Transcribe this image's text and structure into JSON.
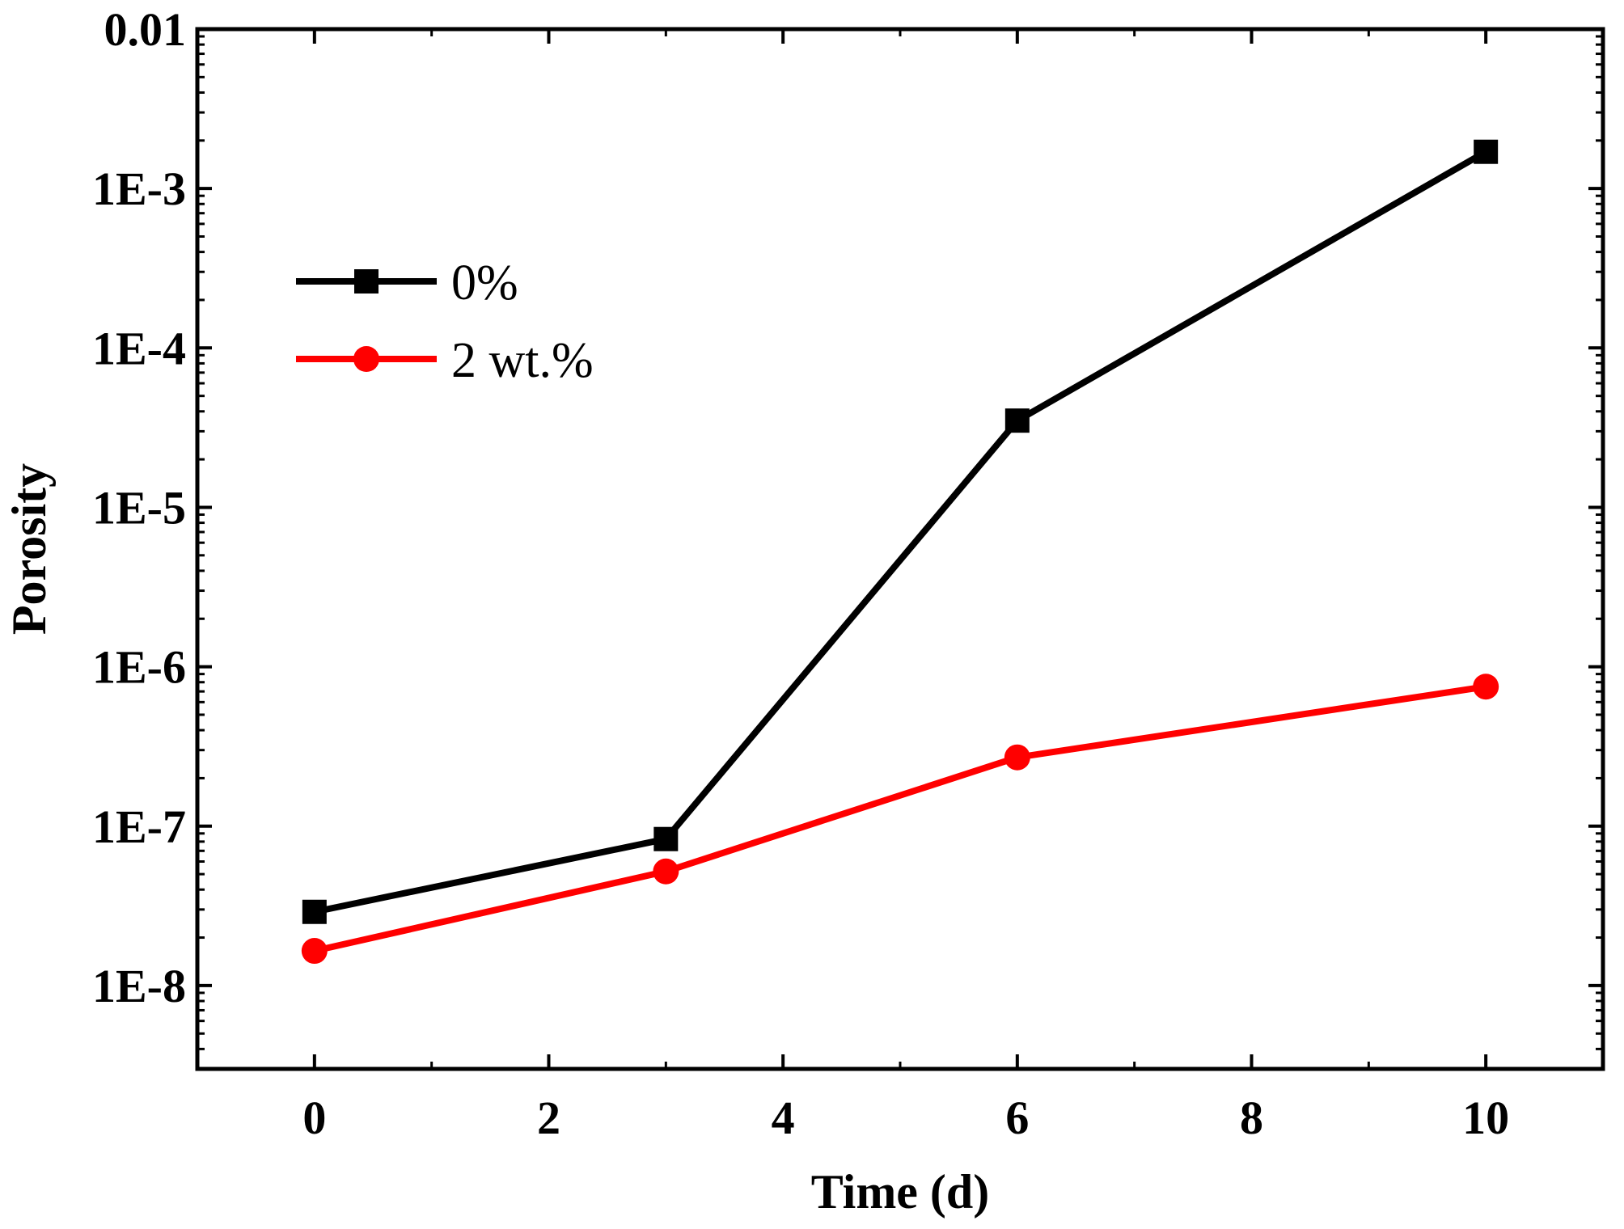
{
  "chart_data": {
    "type": "line",
    "title": "",
    "xlabel": "Time (d)",
    "ylabel": "Porosity",
    "xlim": [
      -1,
      11
    ],
    "ylim": [
      3e-09,
      0.01
    ],
    "yscale": "log",
    "x_ticks": [
      0,
      2,
      4,
      6,
      8,
      10
    ],
    "x_tick_labels": [
      "0",
      "2",
      "4",
      "6",
      "8",
      "10"
    ],
    "y_ticks": [
      1e-08,
      1e-07,
      1e-06,
      1e-05,
      0.0001,
      0.001,
      0.01
    ],
    "y_tick_labels": [
      "1E-8",
      "1E-7",
      "1E-6",
      "1E-5",
      "1E-4",
      "1E-3",
      "0.01"
    ],
    "grid": false,
    "legend_position": "top-left",
    "series": [
      {
        "name": "0%",
        "color": "#000000",
        "marker": "square",
        "x": [
          0,
          3,
          6,
          10
        ],
        "values": [
          2.9e-08,
          8.3e-08,
          3.5e-05,
          0.0017
        ]
      },
      {
        "name": "2 wt.%",
        "color": "#ff0000",
        "marker": "circle",
        "x": [
          0,
          3,
          6,
          10
        ],
        "values": [
          1.65e-08,
          5.2e-08,
          2.7e-07,
          7.5e-07
        ]
      }
    ]
  }
}
